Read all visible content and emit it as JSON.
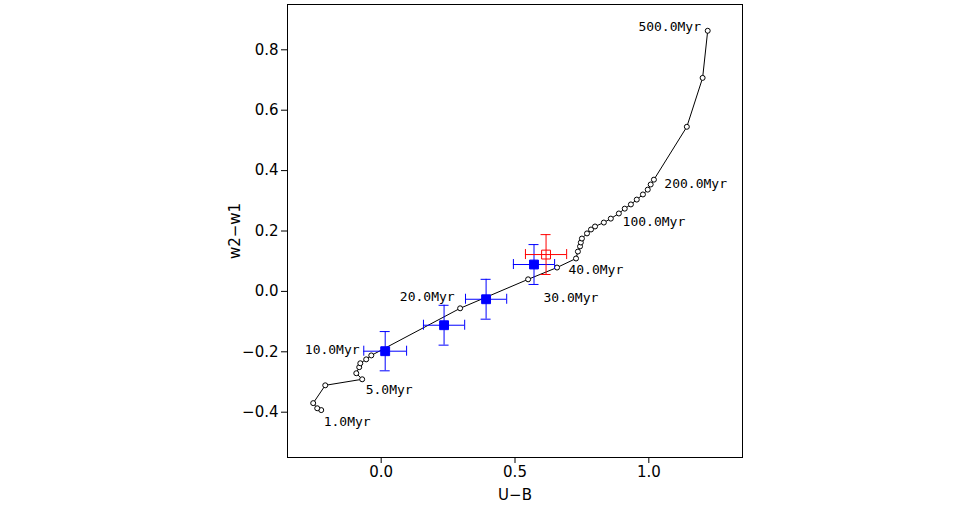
{
  "chart_data": {
    "type": "scatter",
    "x_label": "U−B",
    "y_label": "w2−w1",
    "xlim": [
      -0.35,
      1.35
    ],
    "ylim": [
      -0.55,
      0.95
    ],
    "xticks": [
      0,
      0.5,
      1
    ],
    "yticks": [
      -0.4,
      -0.2,
      0,
      0.2,
      0.4,
      0.6,
      0.8
    ],
    "grid": false,
    "series": [
      {
        "type": "line",
        "color": "#000000",
        "marker": "open_circle",
        "x": [
          -0.224,
          -0.239,
          -0.254,
          -0.209,
          -0.071,
          -0.093,
          -0.082,
          -0.078,
          -0.056,
          -0.037,
          0.295,
          0.549,
          0.657,
          0.728,
          0.735,
          0.743,
          0.746,
          0.75,
          0.769,
          0.784,
          0.799,
          0.832,
          0.858,
          0.888,
          0.91,
          0.933,
          0.955,
          0.978,
          0.996,
          1.007,
          1.019,
          1.142,
          1.201,
          1.22
        ],
        "values": [
          -0.393,
          -0.387,
          -0.37,
          -0.311,
          -0.291,
          -0.271,
          -0.251,
          -0.238,
          -0.225,
          -0.212,
          -0.056,
          0.04,
          0.079,
          0.109,
          0.132,
          0.149,
          0.162,
          0.175,
          0.192,
          0.205,
          0.215,
          0.228,
          0.241,
          0.258,
          0.274,
          0.288,
          0.304,
          0.321,
          0.337,
          0.354,
          0.37,
          0.545,
          0.707,
          0.863
        ]
      },
      {
        "type": "scatter",
        "color": "#0000ff",
        "marker": "filled_square",
        "x": [
          0.015,
          0.235,
          0.392,
          0.571
        ],
        "values": [
          -0.198,
          -0.112,
          -0.026,
          0.089
        ],
        "xerr": [
          0.08,
          0.077,
          0.077,
          0.077
        ],
        "yerr": [
          0.065,
          0.066,
          0.066,
          0.066
        ]
      },
      {
        "type": "scatter",
        "color": "#ff0000",
        "marker": "open_square",
        "x": [
          0.616
        ],
        "values": [
          0.122
        ],
        "xerr": [
          0.077
        ],
        "yerr": [
          0.066
        ]
      }
    ],
    "annotations": [
      {
        "text": "1.0Myr",
        "x": -0.127,
        "y": -0.433
      },
      {
        "text": "5.0Myr",
        "x": 0.03,
        "y": -0.327
      },
      {
        "text": "10.0Myr",
        "x": -0.183,
        "y": -0.192
      },
      {
        "text": "20.0Myr",
        "x": 0.172,
        "y": -0.017
      },
      {
        "text": "30.0Myr",
        "x": 0.709,
        "y": -0.02
      },
      {
        "text": "40.0Myr",
        "x": 0.802,
        "y": 0.073
      },
      {
        "text": "100.0Myr",
        "x": 1.019,
        "y": 0.231
      },
      {
        "text": "200.0Myr",
        "x": 1.175,
        "y": 0.357
      },
      {
        "text": "500.0Myr",
        "x": 1.078,
        "y": 0.876
      }
    ]
  }
}
